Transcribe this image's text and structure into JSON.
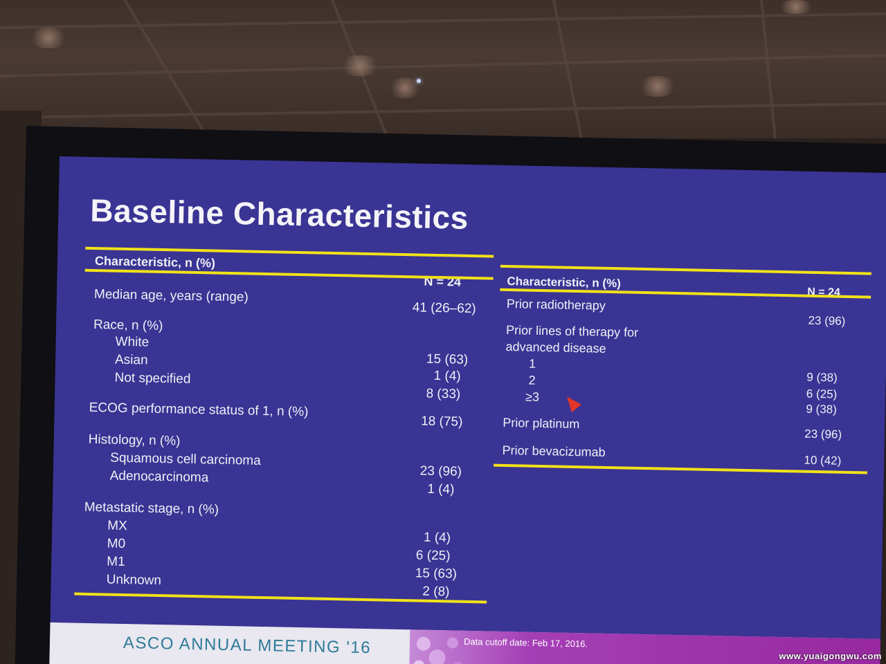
{
  "slide": {
    "title": "Baseline Characteristics",
    "left_table": {
      "header_label": "Characteristic, n (%)",
      "header_n": "N = 24",
      "rows": [
        {
          "label": "Median age, years (range)",
          "value": "41 (26–62)"
        },
        {
          "label": "Race, n (%)",
          "value": ""
        },
        {
          "label": "White",
          "value": "15 (63)"
        },
        {
          "label": "Asian",
          "value": "1 (4)"
        },
        {
          "label": "Not specified",
          "value": "8 (33)"
        },
        {
          "label": "ECOG performance status of 1, n (%)",
          "value": "18 (75)"
        },
        {
          "label": "Histology, n (%)",
          "value": ""
        },
        {
          "label": "Squamous cell carcinoma",
          "value": "23 (96)"
        },
        {
          "label": "Adenocarcinoma",
          "value": "1 (4)"
        },
        {
          "label": "Metastatic stage, n (%)",
          "value": ""
        },
        {
          "label": "MX",
          "value": "1 (4)"
        },
        {
          "label": "M0",
          "value": "6 (25)"
        },
        {
          "label": "M1",
          "value": "15 (63)"
        },
        {
          "label": "Unknown",
          "value": "2 (8)"
        }
      ]
    },
    "right_table": {
      "header_label": "Characteristic, n (%)",
      "header_n": "N = 24",
      "rows": [
        {
          "label": "Prior radiotherapy",
          "value": "23 (96)"
        },
        {
          "label": "Prior lines of therapy for",
          "value": ""
        },
        {
          "label": "advanced disease",
          "value": ""
        },
        {
          "label": "1",
          "value": "9 (38)"
        },
        {
          "label": "2",
          "value": "6 (25)"
        },
        {
          "label": "≥3",
          "value": "9 (38)"
        },
        {
          "label": "Prior platinum",
          "value": "23 (96)"
        },
        {
          "label": "Prior bevacizumab",
          "value": "10 (42)"
        }
      ]
    },
    "footer": {
      "brand": "ASCO ANNUAL MEETING '16",
      "cutoff": "Data cutoff date: Feb 17, 2016."
    }
  },
  "watermark": "www.yuaigongwu.com",
  "colors": {
    "slide_bg": "#3a3494",
    "rule_yellow": "#f1e21a",
    "footer_brand": "#2d7b98",
    "footer_band": "#a53fb6"
  }
}
